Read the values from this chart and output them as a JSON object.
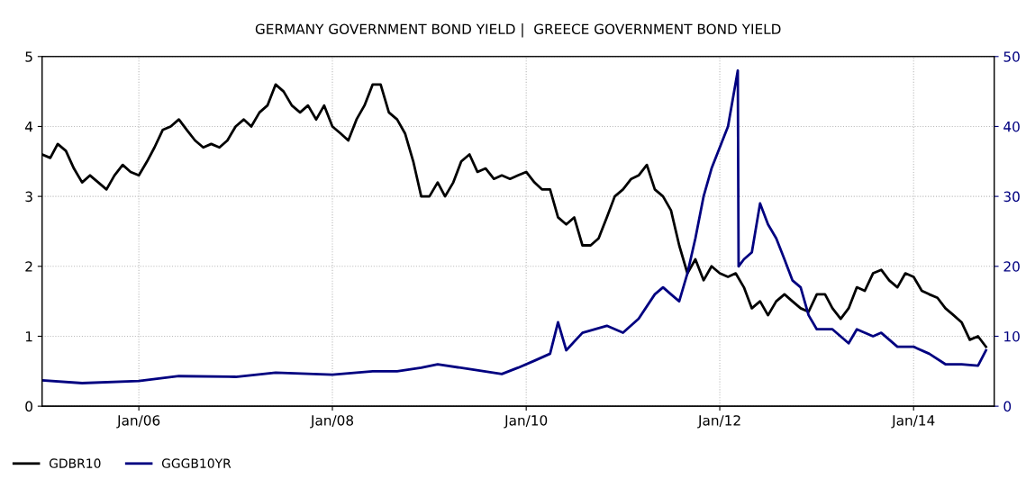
{
  "chart_data": {
    "type": "line",
    "title": "GERMANY GOVERNMENT BOND YIELD |  GREECE GOVERNMENT BOND YIELD",
    "xlim": [
      "2005-01-01",
      "2014-11-01"
    ],
    "xticks": [
      {
        "value": "2006-01-01",
        "label": "Jan/06"
      },
      {
        "value": "2008-01-01",
        "label": "Jan/08"
      },
      {
        "value": "2010-01-01",
        "label": "Jan/10"
      },
      {
        "value": "2012-01-01",
        "label": "Jan/12"
      },
      {
        "value": "2014-01-01",
        "label": "Jan/14"
      }
    ],
    "ylim": [
      0,
      5
    ],
    "yticks": [
      0,
      1,
      2,
      3,
      4,
      5
    ],
    "y2lim": [
      0,
      50
    ],
    "y2ticks": [
      0,
      10,
      20,
      30,
      40,
      50
    ],
    "grid": true,
    "legend": "bottom left",
    "series": [
      {
        "name": "GDBR10",
        "color": "#000000",
        "x": [
          "2005-01",
          "2005-02",
          "2005-03",
          "2005-04",
          "2005-05",
          "2005-06",
          "2005-07",
          "2005-08",
          "2005-09",
          "2005-10",
          "2005-11",
          "2005-12",
          "2006-01",
          "2006-02",
          "2006-03",
          "2006-04",
          "2006-05",
          "2006-06",
          "2006-07",
          "2006-08",
          "2006-09",
          "2006-10",
          "2006-11",
          "2006-12",
          "2007-01",
          "2007-02",
          "2007-03",
          "2007-04",
          "2007-05",
          "2007-06",
          "2007-07",
          "2007-08",
          "2007-09",
          "2007-10",
          "2007-11",
          "2007-12",
          "2008-01",
          "2008-02",
          "2008-03",
          "2008-04",
          "2008-05",
          "2008-06",
          "2008-07",
          "2008-08",
          "2008-09",
          "2008-10",
          "2008-11",
          "2008-12",
          "2009-01",
          "2009-02",
          "2009-03",
          "2009-04",
          "2009-05",
          "2009-06",
          "2009-07",
          "2009-08",
          "2009-09",
          "2009-10",
          "2009-11",
          "2009-12",
          "2010-01",
          "2010-02",
          "2010-03",
          "2010-04",
          "2010-05",
          "2010-06",
          "2010-07",
          "2010-08",
          "2010-09",
          "2010-10",
          "2010-11",
          "2010-12",
          "2011-01",
          "2011-02",
          "2011-03",
          "2011-04",
          "2011-05",
          "2011-06",
          "2011-07",
          "2011-08",
          "2011-09",
          "2011-10",
          "2011-11",
          "2011-12",
          "2012-01",
          "2012-02",
          "2012-03",
          "2012-04",
          "2012-05",
          "2012-06",
          "2012-07",
          "2012-08",
          "2012-09",
          "2012-10",
          "2012-11",
          "2012-12",
          "2013-01",
          "2013-02",
          "2013-03",
          "2013-04",
          "2013-05",
          "2013-06",
          "2013-07",
          "2013-08",
          "2013-09",
          "2013-10",
          "2013-11",
          "2013-12",
          "2014-01",
          "2014-02",
          "2014-03",
          "2014-04",
          "2014-05",
          "2014-06",
          "2014-07",
          "2014-08",
          "2014-09",
          "2014-10"
        ],
        "values": [
          3.6,
          3.55,
          3.75,
          3.65,
          3.4,
          3.2,
          3.3,
          3.2,
          3.1,
          3.3,
          3.45,
          3.35,
          3.3,
          3.5,
          3.7,
          3.95,
          4.0,
          4.1,
          3.95,
          3.8,
          3.7,
          3.75,
          3.7,
          3.8,
          4.0,
          4.1,
          4.0,
          4.2,
          4.3,
          4.6,
          4.5,
          4.3,
          4.2,
          4.3,
          4.1,
          4.3,
          4.0,
          3.9,
          3.8,
          4.1,
          4.3,
          4.6,
          4.6,
          4.2,
          4.1,
          3.9,
          3.5,
          3.0,
          3.0,
          3.2,
          3.0,
          3.2,
          3.5,
          3.6,
          3.35,
          3.4,
          3.25,
          3.3,
          3.25,
          3.3,
          3.35,
          3.2,
          3.1,
          3.1,
          2.7,
          2.6,
          2.7,
          2.3,
          2.3,
          2.4,
          2.7,
          3.0,
          3.1,
          3.25,
          3.3,
          3.45,
          3.1,
          3.0,
          2.8,
          2.3,
          1.9,
          2.1,
          1.8,
          2.0,
          1.9,
          1.85,
          1.9,
          1.7,
          1.4,
          1.5,
          1.3,
          1.5,
          1.6,
          1.5,
          1.4,
          1.35,
          1.6,
          1.6,
          1.4,
          1.25,
          1.4,
          1.7,
          1.65,
          1.9,
          1.95,
          1.8,
          1.7,
          1.9,
          1.85,
          1.65,
          1.6,
          1.55,
          1.4,
          1.3,
          1.2,
          0.95,
          1.0,
          0.85
        ]
      },
      {
        "name": "GGGB10YR",
        "color": "#000080",
        "axis": "y2",
        "x": [
          "2005-01",
          "2005-06",
          "2006-01",
          "2006-06",
          "2007-01",
          "2007-06",
          "2008-01",
          "2008-06",
          "2008-09",
          "2008-12",
          "2009-02",
          "2009-06",
          "2009-10",
          "2009-12",
          "2010-02",
          "2010-04",
          "2010-05",
          "2010-06",
          "2010-08",
          "2010-11",
          "2011-01",
          "2011-03",
          "2011-05",
          "2011-06",
          "2011-07",
          "2011-08",
          "2011-09",
          "2011-10",
          "2011-11",
          "2011-12",
          "2012-01",
          "2012-02",
          "2012-03-09",
          "2012-03-12",
          "2012-04",
          "2012-05",
          "2012-06",
          "2012-07",
          "2012-08",
          "2012-09",
          "2012-10",
          "2012-11",
          "2012-12",
          "2013-01",
          "2013-03",
          "2013-05",
          "2013-06",
          "2013-08",
          "2013-09",
          "2013-11",
          "2014-01",
          "2014-03",
          "2014-05",
          "2014-07",
          "2014-09",
          "2014-10"
        ],
        "values": [
          3.7,
          3.3,
          3.6,
          4.3,
          4.2,
          4.8,
          4.5,
          5.0,
          5.0,
          5.5,
          6.0,
          5.3,
          4.6,
          5.5,
          6.5,
          7.5,
          12,
          8,
          10.5,
          11.5,
          10.5,
          12.5,
          16,
          17,
          16,
          15,
          19,
          24,
          30,
          34,
          37,
          40,
          48,
          20,
          21,
          22,
          29,
          26,
          24,
          21,
          18,
          17,
          13,
          11,
          11,
          9,
          11,
          10,
          10.5,
          8.5,
          8.5,
          7.5,
          6,
          6,
          5.8,
          8
        ]
      }
    ]
  }
}
